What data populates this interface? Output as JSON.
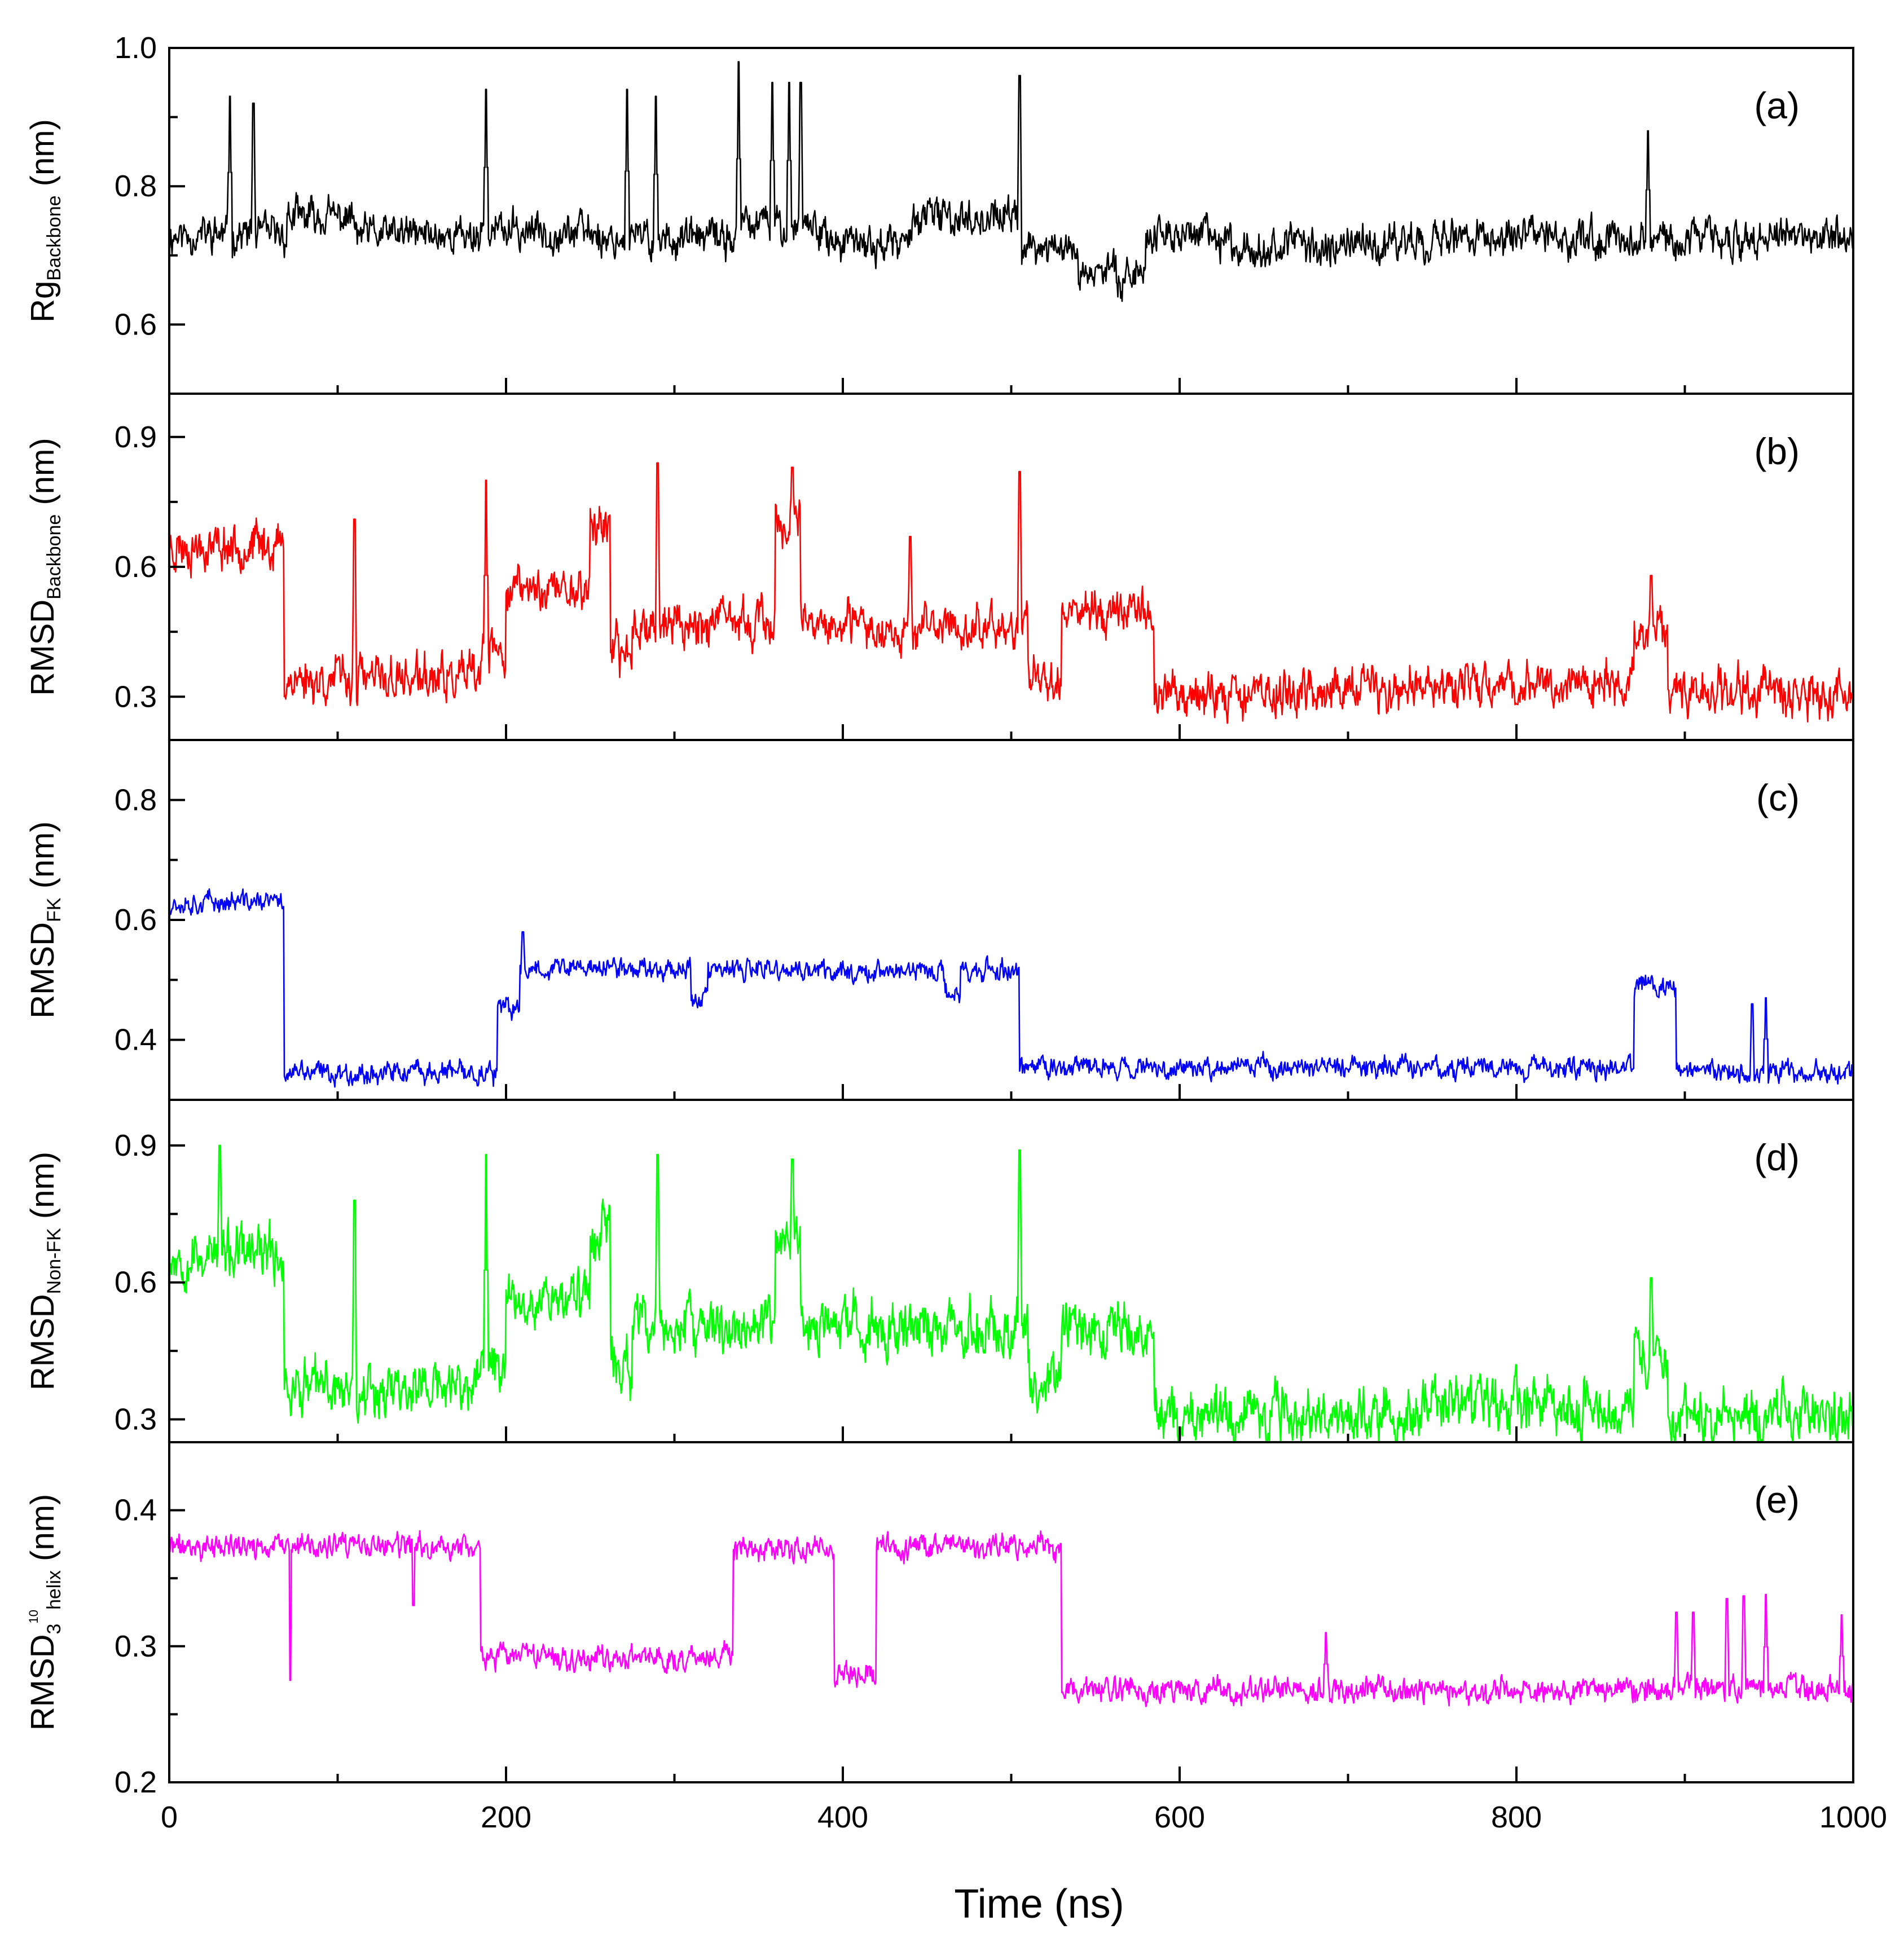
{
  "chart_data": {
    "type": "line",
    "x_label": "Time (ns)",
    "x_range": [
      0,
      1000
    ],
    "x_ticks": [
      0,
      200,
      400,
      600,
      800,
      1000
    ],
    "x_minor_step": 100,
    "panels": [
      {
        "id": "a",
        "label": "(a)",
        "color": "#000000",
        "y_label": {
          "main": "Rg",
          "sub": "Backbone",
          "unit": " (nm)"
        },
        "ylim": [
          0.5,
          1.0
        ],
        "y_ticks": [
          "0.6",
          "0.8",
          "1.0"
        ],
        "y_tick_values": [
          0.6,
          0.8,
          1.0
        ],
        "noise": 0.018,
        "seed": 11,
        "segments": [
          [
            0,
            70,
            0.73
          ],
          [
            70,
            110,
            0.755
          ],
          [
            110,
            185,
            0.73
          ],
          [
            185,
            255,
            0.735
          ],
          [
            255,
            340,
            0.725
          ],
          [
            340,
            390,
            0.745
          ],
          [
            390,
            440,
            0.715
          ],
          [
            440,
            505,
            0.755
          ],
          [
            505,
            540,
            0.71
          ],
          [
            540,
            580,
            0.675
          ],
          [
            580,
            620,
            0.73
          ],
          [
            620,
            730,
            0.715
          ],
          [
            730,
            1000,
            0.725
          ]
        ],
        "spikes": [
          [
            36,
            0.93
          ],
          [
            50,
            0.92
          ],
          [
            188,
            0.94
          ],
          [
            272,
            0.94
          ],
          [
            289,
            0.93
          ],
          [
            338,
            0.98
          ],
          [
            358,
            0.95
          ],
          [
            368,
            0.95
          ],
          [
            375,
            0.95
          ],
          [
            505,
            0.96
          ],
          [
            878,
            0.88
          ]
        ]
      },
      {
        "id": "b",
        "label": "(b)",
        "color": "#ff0000",
        "y_label": {
          "main": "RMSD",
          "sub": "Backbone",
          "unit": " (nm)"
        },
        "ylim": [
          0.2,
          1.0
        ],
        "y_ticks": [
          "0.3",
          "0.6",
          "0.9"
        ],
        "y_tick_values": [
          0.3,
          0.6,
          0.9
        ],
        "noise": 0.035,
        "seed": 23,
        "segments": [
          [
            0,
            68,
            0.65
          ],
          [
            68,
            185,
            0.34
          ],
          [
            185,
            200,
            0.4
          ],
          [
            200,
            250,
            0.55
          ],
          [
            250,
            262,
            0.7
          ],
          [
            262,
            275,
            0.4
          ],
          [
            275,
            360,
            0.47
          ],
          [
            360,
            375,
            0.7
          ],
          [
            375,
            510,
            0.46
          ],
          [
            510,
            530,
            0.35
          ],
          [
            530,
            585,
            0.5
          ],
          [
            585,
            740,
            0.31
          ],
          [
            740,
            870,
            0.33
          ],
          [
            870,
            890,
            0.45
          ],
          [
            890,
            1000,
            0.31
          ]
        ],
        "spikes": [
          [
            110,
            0.71
          ],
          [
            188,
            0.8
          ],
          [
            290,
            0.84
          ],
          [
            370,
            0.83
          ],
          [
            440,
            0.67
          ],
          [
            505,
            0.82
          ],
          [
            880,
            0.58
          ]
        ]
      },
      {
        "id": "c",
        "label": "(c)",
        "color": "#0000ff",
        "y_label": {
          "main": "RMSD",
          "sub": "FK",
          "unit": " (nm)"
        },
        "ylim": [
          0.3,
          0.9
        ],
        "y_ticks": [
          "0.4",
          "0.6",
          "0.8"
        ],
        "y_tick_values": [
          0.4,
          0.6,
          0.8
        ],
        "noise": 0.012,
        "seed": 37,
        "segments": [
          [
            0,
            68,
            0.63
          ],
          [
            68,
            195,
            0.345
          ],
          [
            195,
            208,
            0.45
          ],
          [
            208,
            310,
            0.52
          ],
          [
            310,
            320,
            0.47
          ],
          [
            320,
            460,
            0.515
          ],
          [
            460,
            470,
            0.48
          ],
          [
            470,
            505,
            0.515
          ],
          [
            505,
            870,
            0.355
          ],
          [
            870,
            895,
            0.49
          ],
          [
            895,
            1000,
            0.345
          ]
        ],
        "spikes": [
          [
            210,
            0.58
          ],
          [
            940,
            0.46
          ],
          [
            948,
            0.47
          ]
        ]
      },
      {
        "id": "d",
        "label": "(d)",
        "color": "#00ff00",
        "y_label": {
          "main": "RMSD",
          "sub": "Non-FK",
          "unit": " (nm)"
        },
        "ylim": [
          0.25,
          1.0
        ],
        "y_ticks": [
          "0.3",
          "0.6",
          "0.9"
        ],
        "y_tick_values": [
          0.3,
          0.6,
          0.9
        ],
        "noise": 0.04,
        "seed": 53,
        "segments": [
          [
            0,
            68,
            0.66
          ],
          [
            68,
            185,
            0.37
          ],
          [
            185,
            200,
            0.42
          ],
          [
            200,
            250,
            0.57
          ],
          [
            250,
            262,
            0.72
          ],
          [
            262,
            275,
            0.42
          ],
          [
            275,
            360,
            0.5
          ],
          [
            360,
            375,
            0.7
          ],
          [
            375,
            510,
            0.5
          ],
          [
            510,
            530,
            0.38
          ],
          [
            530,
            585,
            0.5
          ],
          [
            585,
            740,
            0.31
          ],
          [
            740,
            870,
            0.33
          ],
          [
            870,
            890,
            0.45
          ],
          [
            890,
            1000,
            0.31
          ]
        ],
        "spikes": [
          [
            30,
            0.9
          ],
          [
            110,
            0.78
          ],
          [
            188,
            0.88
          ],
          [
            290,
            0.88
          ],
          [
            370,
            0.87
          ],
          [
            505,
            0.89
          ],
          [
            880,
            0.61
          ]
        ]
      },
      {
        "id": "e",
        "label": "(e)",
        "color": "#ff00ff",
        "y_label": {
          "main": "RMSD",
          "sub": "3",
          "sup": "10",
          "sub2": "helix",
          "unit": " (nm)"
        },
        "ylim": [
          0.2,
          0.45
        ],
        "y_ticks": [
          "0.2",
          "0.3",
          "0.4"
        ],
        "y_tick_values": [
          0.2,
          0.3,
          0.4
        ],
        "noise": 0.006,
        "seed": 71,
        "segments": [
          [
            0,
            185,
            0.373
          ],
          [
            185,
            335,
            0.292
          ],
          [
            335,
            395,
            0.37
          ],
          [
            395,
            420,
            0.28
          ],
          [
            420,
            530,
            0.373
          ],
          [
            530,
            1000,
            0.268
          ]
        ],
        "spikes": [
          [
            72,
            0.275
          ],
          [
            145,
            0.33
          ],
          [
            687,
            0.31
          ],
          [
            895,
            0.325
          ],
          [
            905,
            0.325
          ],
          [
            925,
            0.335
          ],
          [
            935,
            0.337
          ],
          [
            948,
            0.338
          ],
          [
            993,
            0.323
          ]
        ]
      }
    ]
  }
}
